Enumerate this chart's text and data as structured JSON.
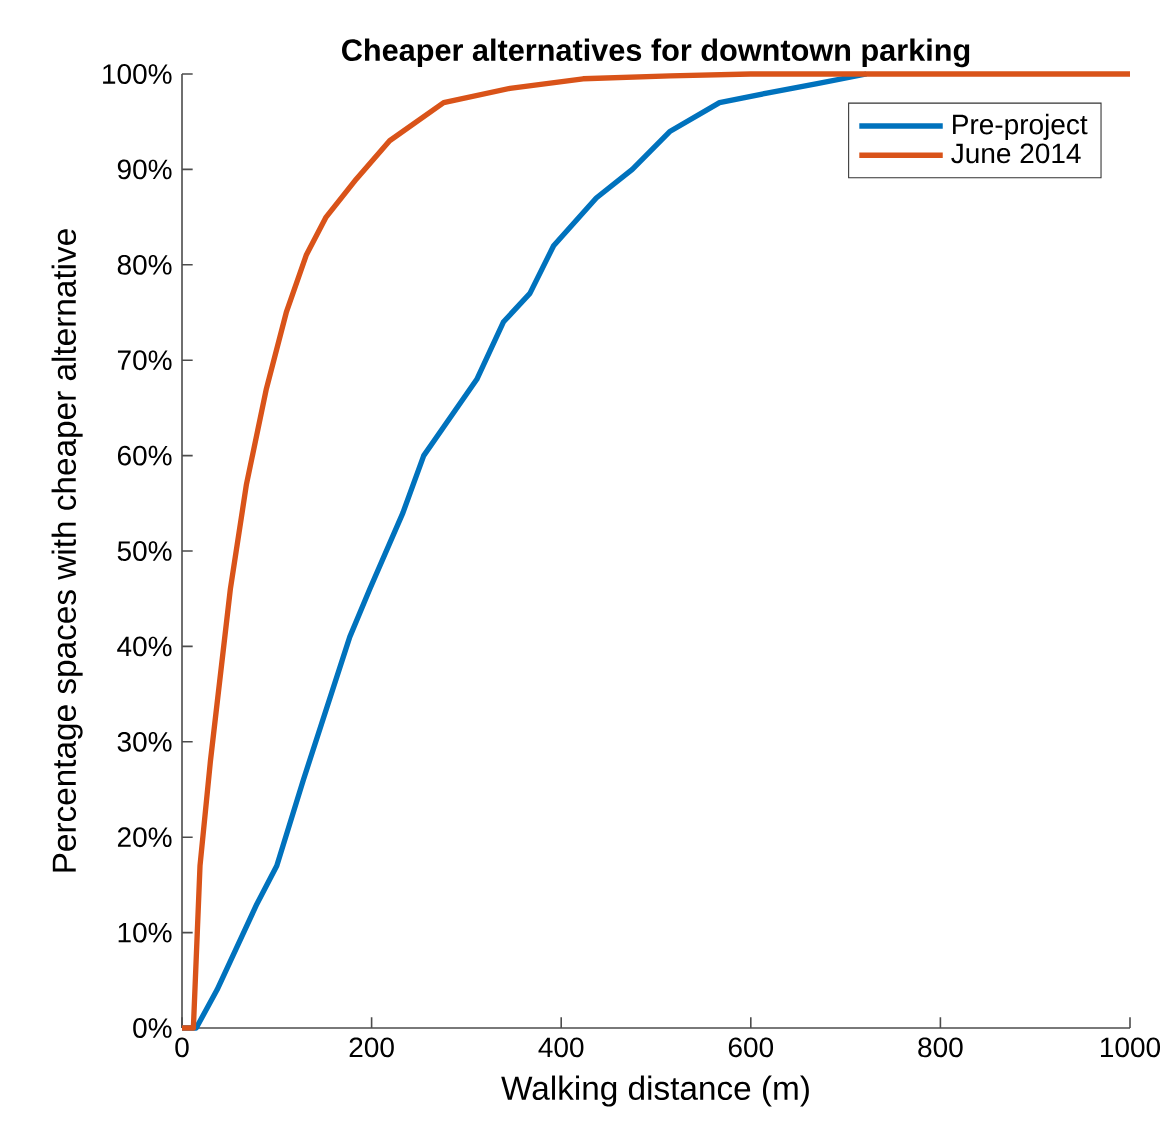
{
  "chart_data": {
    "type": "line",
    "title": "Cheaper alternatives for downtown parking",
    "xlabel": "Walking distance (m)",
    "ylabel": "Percentage spaces with cheaper alternative",
    "xlim": [
      0,
      1000
    ],
    "xticks": [
      0,
      200,
      400,
      600,
      800,
      1000
    ],
    "ylim": [
      0,
      100
    ],
    "yticks": [
      {
        "value": 0,
        "label": "0%"
      },
      {
        "value": 10,
        "label": "10%"
      },
      {
        "value": 20,
        "label": "20%"
      },
      {
        "value": 30,
        "label": "30%"
      },
      {
        "value": 40,
        "label": "40%"
      },
      {
        "value": 50,
        "label": "50%"
      },
      {
        "value": 60,
        "label": "60%"
      },
      {
        "value": 70,
        "label": "70%"
      },
      {
        "value": 80,
        "label": "80%"
      },
      {
        "value": 90,
        "label": "90%"
      },
      {
        "value": 100,
        "label": "100%"
      }
    ],
    "legend": "top right",
    "grid": false,
    "marker": "none",
    "line_style": "solid",
    "series": [
      {
        "name": "Pre-project",
        "color": "#0072bd",
        "x": [
          0,
          15,
          37,
          79,
          100,
          128,
          177,
          198,
          233,
          255,
          276,
          311,
          339,
          367,
          392,
          437,
          475,
          515,
          567,
          617,
          670,
          722
        ],
        "values": [
          0,
          0,
          4,
          13,
          17,
          26,
          41,
          46,
          54,
          60,
          63,
          68,
          74,
          77,
          82,
          87,
          90,
          94,
          97,
          98,
          99,
          100
        ]
      },
      {
        "name": "June 2014",
        "color": "#d95319",
        "x": [
          0,
          12,
          19,
          30,
          51,
          68,
          89,
          110,
          131,
          152,
          184,
          219,
          276,
          346,
          423,
          515,
          600,
          1000
        ],
        "values": [
          0,
          0,
          17,
          28,
          46,
          57,
          67,
          75,
          81,
          85,
          89,
          93,
          97,
          98.5,
          99.5,
          99.8,
          100,
          100
        ]
      }
    ]
  }
}
